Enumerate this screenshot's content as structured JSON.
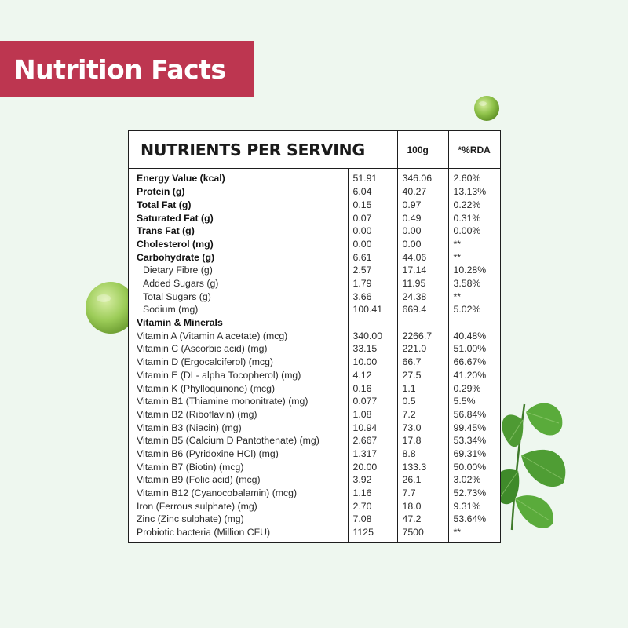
{
  "banner": {
    "title": "Nutrition Facts"
  },
  "colors": {
    "banner": "#bd3650",
    "background": "#eef7ef"
  },
  "table": {
    "headers": {
      "nutrients": "NUTRIENTS PER SERVING",
      "per100g": "100g",
      "rda": "*%RDA"
    },
    "rows": [
      {
        "name": "Energy Value (kcal)",
        "serving": "51.91",
        "per100g": "346.06",
        "rda": "2.60%",
        "style": "bold"
      },
      {
        "name": "Protein (g)",
        "serving": "6.04",
        "per100g": "40.27",
        "rda": "13.13%",
        "style": "bold"
      },
      {
        "name": "Total Fat (g)",
        "serving": "0.15",
        "per100g": "0.97",
        "rda": "0.22%",
        "style": "bold"
      },
      {
        "name": "Saturated Fat (g)",
        "serving": "0.07",
        "per100g": "0.49",
        "rda": "0.31%",
        "style": "bold"
      },
      {
        "name": "Trans Fat (g)",
        "serving": "0.00",
        "per100g": "0.00",
        "rda": "0.00%",
        "style": "bold"
      },
      {
        "name": "Cholesterol (mg)",
        "serving": "0.00",
        "per100g": "0.00",
        "rda": "**",
        "style": "bold"
      },
      {
        "name": "Carbohydrate (g)",
        "serving": "6.61",
        "per100g": "44.06",
        "rda": "**",
        "style": "bold"
      },
      {
        "name": "Dietary Fibre (g)",
        "serving": "2.57",
        "per100g": "17.14",
        "rda": "10.28%",
        "style": "sub"
      },
      {
        "name": "Added Sugars (g)",
        "serving": "1.79",
        "per100g": "11.95",
        "rda": "3.58%",
        "style": "sub"
      },
      {
        "name": "Total Sugars (g)",
        "serving": "3.66",
        "per100g": "24.38",
        "rda": "**",
        "style": "sub"
      },
      {
        "name": "Sodium (mg)",
        "serving": "100.41",
        "per100g": "669.4",
        "rda": "5.02%",
        "style": "sub"
      },
      {
        "name": "Vitamin & Minerals",
        "serving": "",
        "per100g": "",
        "rda": "",
        "style": "bold"
      },
      {
        "name": "Vitamin A (Vitamin A acetate) (mcg)",
        "serving": "340.00",
        "per100g": "2266.7",
        "rda": "40.48%",
        "style": "plain"
      },
      {
        "name": "Vitamin C (Ascorbic acid) (mg)",
        "serving": "33.15",
        "per100g": "221.0",
        "rda": "51.00%",
        "style": "plain"
      },
      {
        "name": "Vitamin D (Ergocalciferol) (mcg)",
        "serving": "10.00",
        "per100g": "66.7",
        "rda": "66.67%",
        "style": "plain"
      },
      {
        "name": "Vitamin E (DL- alpha Tocopherol) (mg)",
        "serving": "4.12",
        "per100g": "27.5",
        "rda": "41.20%",
        "style": "plain"
      },
      {
        "name": "Vitamin K (Phylloquinone) (mcg)",
        "serving": "0.16",
        "per100g": "1.1",
        "rda": "0.29%",
        "style": "plain"
      },
      {
        "name": "Vitamin B1 (Thiamine mononitrate) (mg)",
        "serving": "0.077",
        "per100g": "0.5",
        "rda": "5.5%",
        "style": "plain"
      },
      {
        "name": "Vitamin B2 (Riboflavin) (mg)",
        "serving": "1.08",
        "per100g": "7.2",
        "rda": "56.84%",
        "style": "plain"
      },
      {
        "name": "Vitamin B3 (Niacin) (mg)",
        "serving": "10.94",
        "per100g": "73.0",
        "rda": "99.45%",
        "style": "plain"
      },
      {
        "name": "Vitamin B5 (Calcium D Pantothenate) (mg)",
        "serving": "2.667",
        "per100g": "17.8",
        "rda": "53.34%",
        "style": "plain"
      },
      {
        "name": "Vitamin B6 (Pyridoxine HCl) (mg)",
        "serving": "1.317",
        "per100g": "8.8",
        "rda": "69.31%",
        "style": "plain"
      },
      {
        "name": "Vitamin B7 (Biotin) (mcg)",
        "serving": "20.00",
        "per100g": "133.3",
        "rda": "50.00%",
        "style": "plain"
      },
      {
        "name": "Vitamin B9 (Folic acid) (mcg)",
        "serving": "3.92",
        "per100g": "26.1",
        "rda": "3.02%",
        "style": "plain"
      },
      {
        "name": "Vitamin B12 (Cyanocobalamin) (mcg)",
        "serving": "1.16",
        "per100g": "7.7",
        "rda": "52.73%",
        "style": "plain"
      },
      {
        "name": "Iron (Ferrous sulphate) (mg)",
        "serving": "2.70",
        "per100g": "18.0",
        "rda": "9.31%",
        "style": "plain"
      },
      {
        "name": "Zinc (Zinc sulphate) (mg)",
        "serving": "7.08",
        "per100g": "47.2",
        "rda": "53.64%",
        "style": "plain"
      },
      {
        "name": "Probiotic bacteria (Million CFU)",
        "serving": "1125",
        "per100g": "7500",
        "rda": "**",
        "style": "plain"
      }
    ]
  },
  "decorations": {
    "icons": [
      "pea-icon",
      "pea-icon",
      "mint-leaf-icon"
    ]
  }
}
